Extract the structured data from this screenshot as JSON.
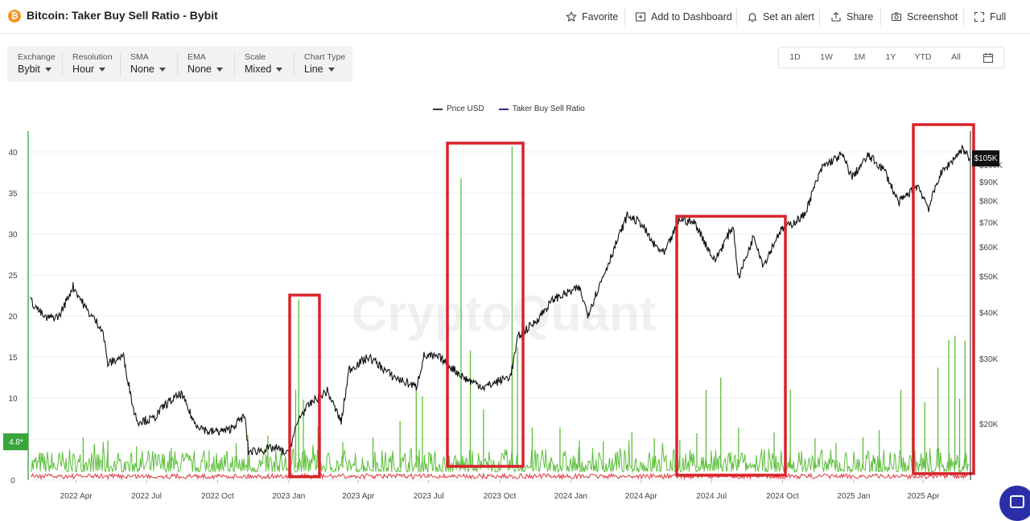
{
  "header": {
    "coin_symbol": "₿",
    "title": "Bitcoin: Taker Buy Sell Ratio - Bybit",
    "actions": [
      {
        "label": "Favorite",
        "icon": "star-icon"
      },
      {
        "label": "Add to Dashboard",
        "icon": "dashboard-add-icon"
      },
      {
        "label": "Set an alert",
        "icon": "bell-icon"
      },
      {
        "label": "Share",
        "icon": "share-icon"
      },
      {
        "label": "Screenshot",
        "icon": "camera-icon"
      },
      {
        "label": "Full",
        "icon": "fullscreen-icon"
      }
    ]
  },
  "controls": [
    {
      "label": "Exchange",
      "value": "Bybit"
    },
    {
      "label": "Resolution",
      "value": "Hour"
    },
    {
      "label": "SMA",
      "value": "None"
    },
    {
      "label": "EMA",
      "value": "None"
    },
    {
      "label": "Scale",
      "value": "Mixed"
    },
    {
      "label": "Chart Type",
      "value": "Line"
    }
  ],
  "ranges": [
    "1D",
    "1W",
    "1M",
    "1Y",
    "YTD",
    "All"
  ],
  "watermark": "CryptoQuant",
  "colors": {
    "price": "#111111",
    "ratio": "#5cbf3a",
    "ratio_low": "#e0474c",
    "highlight": "#d8232a",
    "left_axis": "#4caf50",
    "fab": "#2a2fa8"
  },
  "chart_data": {
    "type": "line",
    "legend": [
      "Price USD",
      "Taker Buy Sell Ratio"
    ],
    "legend_position": "top-center",
    "current_ratio_label": "4.8*",
    "current_price_label": "$105K",
    "left_axis": {
      "ticks": [
        "0",
        "5",
        "10",
        "15",
        "20",
        "25",
        "30",
        "35",
        "40"
      ],
      "range": [
        0,
        42.5
      ]
    },
    "right_axis": {
      "scale": "log",
      "ticks": [
        "$20K",
        "$30K",
        "$40K",
        "$50K",
        "$60K",
        "$70K",
        "$80K",
        "$90K",
        "$100K"
      ]
    },
    "x_ticks": [
      "2022 Apr",
      "2022 Jul",
      "2022 Oct",
      "2023 Jan",
      "2023 Apr",
      "2023 Jul",
      "2023 Oct",
      "2024 Jan",
      "2024 Apr",
      "2024 Jul",
      "2024 Oct",
      "2025 Jan",
      "2025 Apr"
    ],
    "x_range": [
      "2022-02-01",
      "2025-05-31"
    ],
    "series": [
      {
        "name": "Price USD",
        "axis": "right",
        "points": [
          [
            "2022-02-01",
            43000
          ],
          [
            "2022-02-20",
            38500
          ],
          [
            "2022-03-10",
            39000
          ],
          [
            "2022-03-28",
            47000
          ],
          [
            "2022-04-15",
            40500
          ],
          [
            "2022-05-05",
            36000
          ],
          [
            "2022-05-12",
            29000
          ],
          [
            "2022-06-01",
            30500
          ],
          [
            "2022-06-15",
            21500
          ],
          [
            "2022-06-20",
            20300
          ],
          [
            "2022-07-10",
            20600
          ],
          [
            "2022-07-25",
            22500
          ],
          [
            "2022-08-15",
            24100
          ],
          [
            "2022-09-01",
            20100
          ],
          [
            "2022-09-20",
            19000
          ],
          [
            "2022-10-15",
            19200
          ],
          [
            "2022-11-05",
            21000
          ],
          [
            "2022-11-10",
            16800
          ],
          [
            "2022-12-15",
            17200
          ],
          [
            "2022-12-31",
            16550
          ],
          [
            "2023-01-15",
            20900
          ],
          [
            "2023-02-01",
            23000
          ],
          [
            "2023-02-20",
            24500
          ],
          [
            "2023-03-10",
            20200
          ],
          [
            "2023-03-20",
            28000
          ],
          [
            "2023-04-15",
            30300
          ],
          [
            "2023-05-15",
            26900
          ],
          [
            "2023-06-15",
            25100
          ],
          [
            "2023-06-25",
            30500
          ],
          [
            "2023-07-15",
            30200
          ],
          [
            "2023-08-17",
            26500
          ],
          [
            "2023-09-11",
            25100
          ],
          [
            "2023-10-15",
            26900
          ],
          [
            "2023-10-25",
            34500
          ],
          [
            "2023-11-15",
            37500
          ],
          [
            "2023-12-10",
            43500
          ],
          [
            "2024-01-12",
            46500
          ],
          [
            "2024-01-23",
            39500
          ],
          [
            "2024-02-15",
            52000
          ],
          [
            "2024-03-14",
            73000
          ],
          [
            "2024-04-01",
            69500
          ],
          [
            "2024-04-17",
            61000
          ],
          [
            "2024-05-01",
            57500
          ],
          [
            "2024-05-21",
            71500
          ],
          [
            "2024-06-10",
            69500
          ],
          [
            "2024-07-05",
            55000
          ],
          [
            "2024-07-29",
            68500
          ],
          [
            "2024-08-05",
            49500
          ],
          [
            "2024-08-25",
            64500
          ],
          [
            "2024-09-06",
            53500
          ],
          [
            "2024-09-27",
            66000
          ],
          [
            "2024-10-29",
            73000
          ],
          [
            "2024-11-12",
            88000
          ],
          [
            "2024-11-22",
            99000
          ],
          [
            "2024-12-17",
            106500
          ],
          [
            "2024-12-30",
            92500
          ],
          [
            "2025-01-20",
            106000
          ],
          [
            "2025-02-10",
            96500
          ],
          [
            "2025-02-28",
            79000
          ],
          [
            "2025-03-25",
            88000
          ],
          [
            "2025-04-08",
            76500
          ],
          [
            "2025-04-22",
            93500
          ],
          [
            "2025-05-22",
            111000
          ],
          [
            "2025-05-31",
            104000
          ]
        ]
      },
      {
        "name": "Taker Buy Sell Ratio",
        "axis": "left",
        "baseline": 1.0,
        "spikes": [
          [
            "2022-04-10",
            5.2
          ],
          [
            "2022-05-12",
            4.8
          ],
          [
            "2022-06-18",
            4.1
          ],
          [
            "2022-08-02",
            3.9
          ],
          [
            "2022-09-20",
            3.6
          ],
          [
            "2022-10-25",
            4.5
          ],
          [
            "2022-11-09",
            5.5
          ],
          [
            "2022-12-05",
            5.4
          ],
          [
            "2023-01-10",
            11.0
          ],
          [
            "2023-01-14",
            22.0
          ],
          [
            "2023-01-20",
            9.8
          ],
          [
            "2023-02-08",
            6.5
          ],
          [
            "2023-03-12",
            4.6
          ],
          [
            "2023-04-20",
            5.2
          ],
          [
            "2023-05-25",
            7.2
          ],
          [
            "2023-06-15",
            11.0
          ],
          [
            "2023-06-23",
            10.2
          ],
          [
            "2023-07-26",
            6.8
          ],
          [
            "2023-08-12",
            36.8
          ],
          [
            "2023-08-24",
            15.8
          ],
          [
            "2023-09-10",
            8.6
          ],
          [
            "2023-10-17",
            40.7
          ],
          [
            "2023-10-24",
            16.2
          ],
          [
            "2023-11-12",
            6.4
          ],
          [
            "2023-12-18",
            6.4
          ],
          [
            "2024-01-12",
            4.8
          ],
          [
            "2024-02-12",
            4.7
          ],
          [
            "2024-03-20",
            5.8
          ],
          [
            "2024-04-18",
            5.1
          ],
          [
            "2024-05-21",
            4.9
          ],
          [
            "2024-06-12",
            5.7
          ],
          [
            "2024-06-24",
            11.0
          ],
          [
            "2024-07-13",
            12.5
          ],
          [
            "2024-08-05",
            6.4
          ],
          [
            "2024-09-20",
            5.8
          ],
          [
            "2024-10-05",
            6.9
          ],
          [
            "2024-10-11",
            11.0
          ],
          [
            "2024-11-12",
            5.1
          ],
          [
            "2024-12-09",
            4.5
          ],
          [
            "2025-01-13",
            5.2
          ],
          [
            "2025-02-03",
            6.1
          ],
          [
            "2025-03-03",
            11.0
          ],
          [
            "2025-03-18",
            8.9
          ],
          [
            "2025-04-03",
            9.5
          ],
          [
            "2025-04-20",
            13.7
          ],
          [
            "2025-05-04",
            17.1
          ],
          [
            "2025-05-12",
            17.6
          ],
          [
            "2025-05-18",
            9.9
          ],
          [
            "2025-05-25",
            17.0
          ]
        ]
      }
    ]
  }
}
